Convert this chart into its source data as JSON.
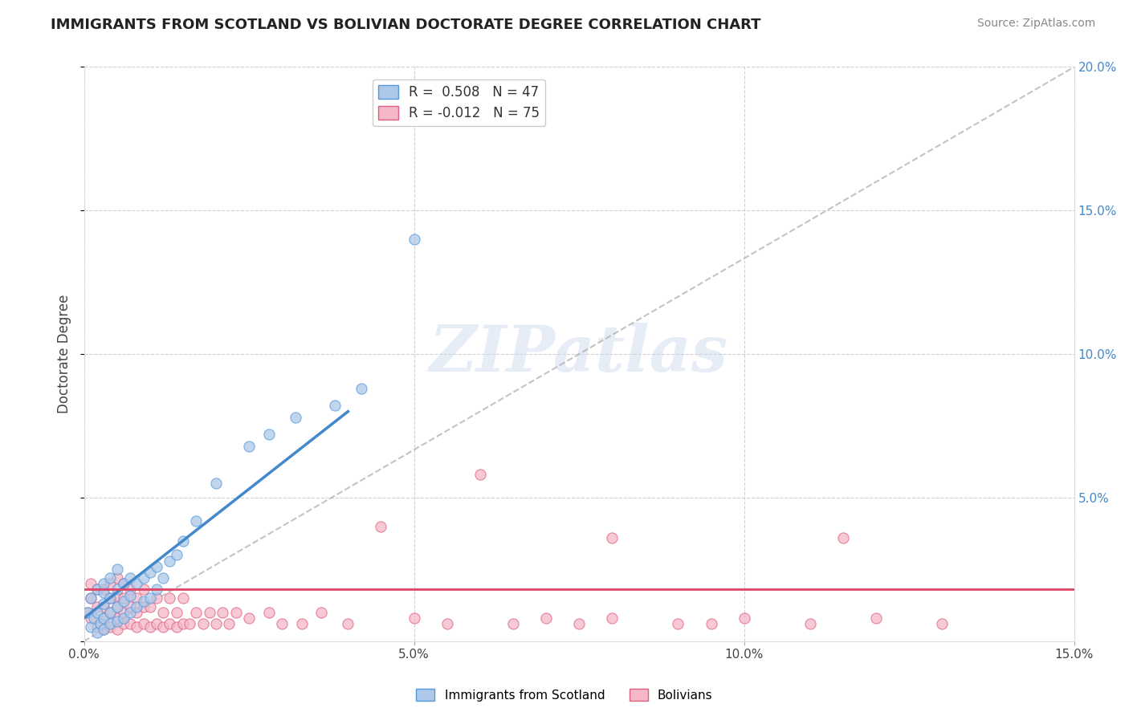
{
  "title": "IMMIGRANTS FROM SCOTLAND VS BOLIVIAN DOCTORATE DEGREE CORRELATION CHART",
  "source": "Source: ZipAtlas.com",
  "ylabel": "Doctorate Degree",
  "xlim": [
    0.0,
    0.15
  ],
  "ylim": [
    0.0,
    0.2
  ],
  "xtick_vals": [
    0.0,
    0.05,
    0.1,
    0.15
  ],
  "xtick_labels": [
    "0.0%",
    "5.0%",
    "10.0%",
    "15.0%"
  ],
  "ytick_vals": [
    0.0,
    0.05,
    0.1,
    0.15,
    0.2
  ],
  "ytick_labels_right": [
    "",
    "5.0%",
    "10.0%",
    "15.0%",
    "20.0%"
  ],
  "legend_line1": "R =  0.508   N = 47",
  "legend_line2": "R = -0.012   N = 75",
  "color_scotland_fill": "#adc8e8",
  "color_scotland_edge": "#5599dd",
  "color_bolivia_fill": "#f5b8c8",
  "color_bolivia_edge": "#e06080",
  "color_scotland_line": "#4488cc",
  "color_bolivia_line": "#dd4466",
  "color_dash": "#aaaaaa",
  "watermark": "ZIPatlas",
  "background_color": "#ffffff",
  "scatter_scotland_x": [
    0.0005,
    0.001,
    0.001,
    0.0015,
    0.002,
    0.002,
    0.002,
    0.0025,
    0.003,
    0.003,
    0.003,
    0.003,
    0.003,
    0.004,
    0.004,
    0.004,
    0.004,
    0.005,
    0.005,
    0.005,
    0.005,
    0.006,
    0.006,
    0.006,
    0.007,
    0.007,
    0.007,
    0.008,
    0.008,
    0.009,
    0.009,
    0.01,
    0.01,
    0.011,
    0.011,
    0.012,
    0.013,
    0.014,
    0.015,
    0.017,
    0.02,
    0.025,
    0.028,
    0.032,
    0.038,
    0.042,
    0.05
  ],
  "scatter_scotland_y": [
    0.01,
    0.005,
    0.015,
    0.008,
    0.003,
    0.01,
    0.018,
    0.006,
    0.004,
    0.008,
    0.013,
    0.017,
    0.02,
    0.006,
    0.01,
    0.015,
    0.022,
    0.007,
    0.012,
    0.018,
    0.025,
    0.008,
    0.014,
    0.02,
    0.01,
    0.016,
    0.022,
    0.012,
    0.02,
    0.014,
    0.022,
    0.015,
    0.024,
    0.018,
    0.026,
    0.022,
    0.028,
    0.03,
    0.035,
    0.042,
    0.055,
    0.068,
    0.072,
    0.078,
    0.082,
    0.088,
    0.14
  ],
  "scatter_bolivia_x": [
    0.0005,
    0.001,
    0.001,
    0.001,
    0.002,
    0.002,
    0.002,
    0.003,
    0.003,
    0.003,
    0.003,
    0.004,
    0.004,
    0.004,
    0.004,
    0.005,
    0.005,
    0.005,
    0.005,
    0.005,
    0.006,
    0.006,
    0.006,
    0.006,
    0.007,
    0.007,
    0.007,
    0.008,
    0.008,
    0.008,
    0.009,
    0.009,
    0.009,
    0.01,
    0.01,
    0.011,
    0.011,
    0.012,
    0.012,
    0.013,
    0.013,
    0.014,
    0.014,
    0.015,
    0.015,
    0.016,
    0.017,
    0.018,
    0.019,
    0.02,
    0.021,
    0.022,
    0.023,
    0.025,
    0.028,
    0.03,
    0.033,
    0.036,
    0.04,
    0.045,
    0.05,
    0.055,
    0.06,
    0.065,
    0.07,
    0.075,
    0.08,
    0.09,
    0.1,
    0.11,
    0.12,
    0.13,
    0.08,
    0.095,
    0.115
  ],
  "scatter_bolivia_y": [
    0.01,
    0.008,
    0.015,
    0.02,
    0.005,
    0.012,
    0.018,
    0.004,
    0.008,
    0.012,
    0.018,
    0.005,
    0.01,
    0.015,
    0.02,
    0.004,
    0.008,
    0.012,
    0.016,
    0.022,
    0.006,
    0.01,
    0.015,
    0.02,
    0.006,
    0.012,
    0.018,
    0.005,
    0.01,
    0.015,
    0.006,
    0.012,
    0.018,
    0.005,
    0.012,
    0.006,
    0.015,
    0.005,
    0.01,
    0.006,
    0.015,
    0.005,
    0.01,
    0.006,
    0.015,
    0.006,
    0.01,
    0.006,
    0.01,
    0.006,
    0.01,
    0.006,
    0.01,
    0.008,
    0.01,
    0.006,
    0.006,
    0.01,
    0.006,
    0.04,
    0.008,
    0.006,
    0.058,
    0.006,
    0.008,
    0.006,
    0.008,
    0.006,
    0.008,
    0.006,
    0.008,
    0.006,
    0.036,
    0.006,
    0.036
  ],
  "scotland_line_x0": 0.0,
  "scotland_line_y0": 0.008,
  "scotland_line_x1": 0.04,
  "scotland_line_y1": 0.08,
  "bolivia_line_x0": 0.0,
  "bolivia_line_y0": 0.018,
  "bolivia_line_x1": 0.15,
  "bolivia_line_y1": 0.018,
  "dash_line_x0": 0.0,
  "dash_line_y0": 0.0,
  "dash_line_x1": 0.15,
  "dash_line_y1": 0.2
}
